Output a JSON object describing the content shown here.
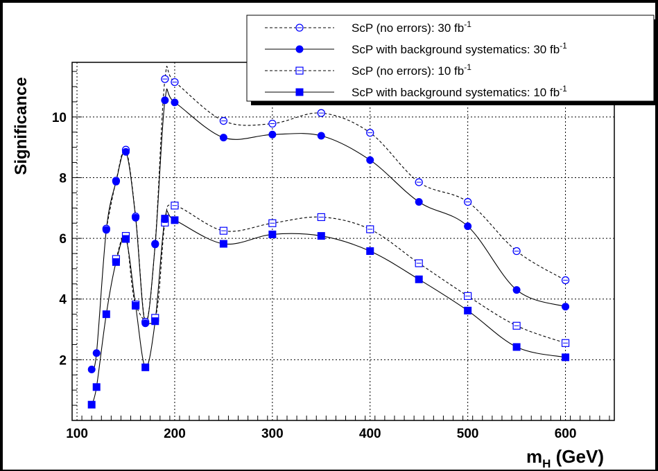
{
  "chart_data": {
    "type": "line",
    "xlabel_main": "m",
    "xlabel_sub": "H",
    "xlabel_unit": " (GeV)",
    "ylabel": "Significance",
    "xlim": [
      95,
      650
    ],
    "ylim": [
      0,
      11.8
    ],
    "x_ticks": [
      100,
      200,
      300,
      400,
      500,
      600
    ],
    "y_ticks": [
      2,
      4,
      6,
      8,
      10
    ],
    "grid": true,
    "legend_position": "top-right",
    "colors": {
      "marker": "#0000ff",
      "line": "#000000"
    },
    "series": [
      {
        "name": "ScP (no errors): 30 fb",
        "name_sup": "-1",
        "line_style": "dashed",
        "marker": "open-circle",
        "x": [
          130,
          140,
          150,
          160,
          170,
          180,
          190,
          200,
          250,
          300,
          350,
          400,
          450,
          500,
          550,
          600
        ],
        "y": [
          6.32,
          7.9,
          8.92,
          6.72,
          3.25,
          5.82,
          11.25,
          11.15,
          9.87,
          9.78,
          10.13,
          9.48,
          7.85,
          7.2,
          5.58,
          4.62
        ]
      },
      {
        "name": "ScP with background systematics: 30 fb",
        "name_sup": "-1",
        "line_style": "solid",
        "marker": "filled-circle",
        "x": [
          115,
          120,
          130,
          140,
          150,
          160,
          170,
          180,
          190,
          200,
          250,
          300,
          350,
          400,
          450,
          500,
          550,
          600
        ],
        "y": [
          1.68,
          2.22,
          6.28,
          7.87,
          8.85,
          6.68,
          3.2,
          5.8,
          10.55,
          10.48,
          9.32,
          9.42,
          9.38,
          8.58,
          7.2,
          6.4,
          4.3,
          3.75
        ]
      },
      {
        "name": "ScP (no errors): 10 fb",
        "name_sup": "-1",
        "line_style": "dashed",
        "marker": "open-square",
        "x": [
          140,
          150,
          160,
          180,
          190,
          200,
          250,
          300,
          350,
          400,
          450,
          500,
          550,
          600
        ],
        "y": [
          5.32,
          6.08,
          3.82,
          3.38,
          6.52,
          7.08,
          6.25,
          6.5,
          6.7,
          6.3,
          5.18,
          4.1,
          3.12,
          2.55
        ]
      },
      {
        "name": "ScP with background systematics: 10 fb",
        "name_sup": "-1",
        "line_style": "solid",
        "marker": "filled-square",
        "x": [
          115,
          120,
          130,
          140,
          150,
          160,
          170,
          180,
          190,
          200,
          250,
          300,
          350,
          400,
          450,
          500,
          550,
          600
        ],
        "y": [
          0.52,
          1.1,
          3.5,
          5.22,
          5.98,
          3.78,
          1.75,
          3.27,
          6.65,
          6.6,
          5.82,
          6.13,
          6.08,
          5.58,
          4.65,
          3.62,
          2.42,
          2.08
        ]
      }
    ]
  }
}
